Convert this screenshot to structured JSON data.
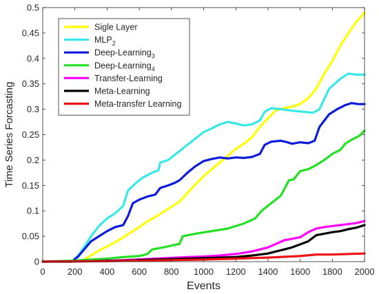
{
  "chart_data": {
    "type": "line",
    "title": "",
    "xlabel": "Events",
    "ylabel": "Time Series Forcasting",
    "xlim": [
      0,
      2000
    ],
    "ylim": [
      0,
      0.5
    ],
    "x_ticks": [
      0,
      200,
      400,
      600,
      800,
      1000,
      1200,
      1400,
      1600,
      1800,
      2000
    ],
    "x_tick_labels": [
      "0",
      "200",
      "400",
      "600",
      "800",
      "1000",
      "1200",
      "1400",
      "1600",
      "1800",
      "2000"
    ],
    "y_ticks": [
      0,
      0.05,
      0.1,
      0.15,
      0.2,
      0.25,
      0.3,
      0.35,
      0.4,
      0.45,
      0.5
    ],
    "y_tick_labels": [
      "0",
      "0.05",
      "0.1",
      "0.15",
      "0.2",
      "0.25",
      "0.3",
      "0.35",
      "0.4",
      "0.45",
      "0.5"
    ],
    "grid": false,
    "legend_position": "top-left",
    "series": [
      {
        "name": "Sigle Layer",
        "legend_main": "Sigle Layer",
        "legend_sub": "",
        "color": "#ffff00",
        "points": [
          [
            0,
            0
          ],
          [
            200,
            0
          ],
          [
            250,
            0.003
          ],
          [
            300,
            0.012
          ],
          [
            350,
            0.022
          ],
          [
            400,
            0.03
          ],
          [
            450,
            0.038
          ],
          [
            500,
            0.048
          ],
          [
            550,
            0.058
          ],
          [
            600,
            0.068
          ],
          [
            650,
            0.079
          ],
          [
            700,
            0.088
          ],
          [
            750,
            0.098
          ],
          [
            800,
            0.108
          ],
          [
            850,
            0.118
          ],
          [
            900,
            0.135
          ],
          [
            950,
            0.152
          ],
          [
            1000,
            0.168
          ],
          [
            1050,
            0.182
          ],
          [
            1100,
            0.195
          ],
          [
            1150,
            0.208
          ],
          [
            1200,
            0.222
          ],
          [
            1250,
            0.232
          ],
          [
            1300,
            0.245
          ],
          [
            1350,
            0.265
          ],
          [
            1400,
            0.282
          ],
          [
            1450,
            0.298
          ],
          [
            1500,
            0.302
          ],
          [
            1550,
            0.305
          ],
          [
            1600,
            0.31
          ],
          [
            1650,
            0.322
          ],
          [
            1700,
            0.34
          ],
          [
            1750,
            0.37
          ],
          [
            1800,
            0.395
          ],
          [
            1850,
            0.425
          ],
          [
            1900,
            0.45
          ],
          [
            1950,
            0.472
          ],
          [
            2000,
            0.49
          ]
        ]
      },
      {
        "name": "MLP2",
        "legend_main": "MLP",
        "legend_sub": "2",
        "color": "#38e8e8",
        "points": [
          [
            0,
            0
          ],
          [
            180,
            0
          ],
          [
            220,
            0.012
          ],
          [
            260,
            0.03
          ],
          [
            300,
            0.05
          ],
          [
            350,
            0.07
          ],
          [
            400,
            0.085
          ],
          [
            450,
            0.095
          ],
          [
            500,
            0.11
          ],
          [
            530,
            0.14
          ],
          [
            580,
            0.155
          ],
          [
            620,
            0.165
          ],
          [
            680,
            0.175
          ],
          [
            720,
            0.18
          ],
          [
            730,
            0.195
          ],
          [
            780,
            0.2
          ],
          [
            820,
            0.21
          ],
          [
            880,
            0.225
          ],
          [
            940,
            0.24
          ],
          [
            1000,
            0.255
          ],
          [
            1050,
            0.262
          ],
          [
            1100,
            0.27
          ],
          [
            1150,
            0.275
          ],
          [
            1200,
            0.272
          ],
          [
            1250,
            0.268
          ],
          [
            1300,
            0.27
          ],
          [
            1350,
            0.278
          ],
          [
            1380,
            0.295
          ],
          [
            1420,
            0.302
          ],
          [
            1480,
            0.3
          ],
          [
            1550,
            0.297
          ],
          [
            1620,
            0.295
          ],
          [
            1680,
            0.293
          ],
          [
            1720,
            0.3
          ],
          [
            1780,
            0.34
          ],
          [
            1850,
            0.36
          ],
          [
            1900,
            0.37
          ],
          [
            1950,
            0.368
          ],
          [
            2000,
            0.368
          ]
        ]
      },
      {
        "name": "Deep-Learning3",
        "legend_main": "Deep-Learning",
        "legend_sub": "3",
        "color": "#0a1adc",
        "points": [
          [
            0,
            0
          ],
          [
            180,
            0
          ],
          [
            220,
            0.01
          ],
          [
            260,
            0.025
          ],
          [
            300,
            0.04
          ],
          [
            350,
            0.05
          ],
          [
            400,
            0.06
          ],
          [
            450,
            0.068
          ],
          [
            500,
            0.072
          ],
          [
            530,
            0.09
          ],
          [
            560,
            0.115
          ],
          [
            600,
            0.122
          ],
          [
            650,
            0.128
          ],
          [
            700,
            0.132
          ],
          [
            730,
            0.145
          ],
          [
            780,
            0.15
          ],
          [
            820,
            0.155
          ],
          [
            850,
            0.16
          ],
          [
            900,
            0.175
          ],
          [
            950,
            0.188
          ],
          [
            1000,
            0.198
          ],
          [
            1050,
            0.202
          ],
          [
            1100,
            0.205
          ],
          [
            1150,
            0.203
          ],
          [
            1200,
            0.205
          ],
          [
            1250,
            0.204
          ],
          [
            1300,
            0.206
          ],
          [
            1350,
            0.212
          ],
          [
            1380,
            0.23
          ],
          [
            1420,
            0.236
          ],
          [
            1480,
            0.238
          ],
          [
            1520,
            0.235
          ],
          [
            1550,
            0.232
          ],
          [
            1600,
            0.235
          ],
          [
            1650,
            0.233
          ],
          [
            1690,
            0.238
          ],
          [
            1720,
            0.265
          ],
          [
            1780,
            0.29
          ],
          [
            1830,
            0.3
          ],
          [
            1880,
            0.308
          ],
          [
            1920,
            0.312
          ],
          [
            1960,
            0.31
          ],
          [
            2000,
            0.31
          ]
        ]
      },
      {
        "name": "Deep-Learning4",
        "legend_main": "Deep-Learning",
        "legend_sub": "4",
        "color": "#22e022",
        "points": [
          [
            0,
            0
          ],
          [
            200,
            0.002
          ],
          [
            300,
            0.004
          ],
          [
            400,
            0.006
          ],
          [
            500,
            0.009
          ],
          [
            600,
            0.011
          ],
          [
            650,
            0.015
          ],
          [
            680,
            0.024
          ],
          [
            750,
            0.028
          ],
          [
            850,
            0.035
          ],
          [
            870,
            0.05
          ],
          [
            950,
            0.055
          ],
          [
            1050,
            0.06
          ],
          [
            1150,
            0.065
          ],
          [
            1250,
            0.075
          ],
          [
            1320,
            0.085
          ],
          [
            1360,
            0.1
          ],
          [
            1420,
            0.115
          ],
          [
            1480,
            0.13
          ],
          [
            1530,
            0.16
          ],
          [
            1560,
            0.162
          ],
          [
            1600,
            0.178
          ],
          [
            1650,
            0.182
          ],
          [
            1700,
            0.19
          ],
          [
            1750,
            0.2
          ],
          [
            1800,
            0.212
          ],
          [
            1850,
            0.22
          ],
          [
            1880,
            0.232
          ],
          [
            1920,
            0.24
          ],
          [
            1970,
            0.248
          ],
          [
            1990,
            0.255
          ],
          [
            2000,
            0.258
          ]
        ]
      },
      {
        "name": "Transfer-Learning",
        "legend_main": "Transfer-Learning",
        "legend_sub": "",
        "color": "#ff00ff",
        "points": [
          [
            0,
            0
          ],
          [
            300,
            0.001
          ],
          [
            500,
            0.003
          ],
          [
            700,
            0.006
          ],
          [
            900,
            0.009
          ],
          [
            1000,
            0.01
          ],
          [
            1100,
            0.012
          ],
          [
            1200,
            0.015
          ],
          [
            1300,
            0.02
          ],
          [
            1400,
            0.028
          ],
          [
            1450,
            0.035
          ],
          [
            1500,
            0.042
          ],
          [
            1550,
            0.045
          ],
          [
            1600,
            0.048
          ],
          [
            1650,
            0.058
          ],
          [
            1700,
            0.065
          ],
          [
            1750,
            0.068
          ],
          [
            1800,
            0.07
          ],
          [
            1850,
            0.072
          ],
          [
            1900,
            0.074
          ],
          [
            1950,
            0.076
          ],
          [
            2000,
            0.08
          ]
        ]
      },
      {
        "name": "Meta-Learning",
        "legend_main": "Meta-Learning",
        "legend_sub": "",
        "color": "#000000",
        "points": [
          [
            0,
            0
          ],
          [
            300,
            0.001
          ],
          [
            500,
            0.002
          ],
          [
            700,
            0.004
          ],
          [
            900,
            0.006
          ],
          [
            1100,
            0.008
          ],
          [
            1200,
            0.009
          ],
          [
            1300,
            0.012
          ],
          [
            1400,
            0.016
          ],
          [
            1450,
            0.02
          ],
          [
            1500,
            0.024
          ],
          [
            1550,
            0.028
          ],
          [
            1600,
            0.034
          ],
          [
            1650,
            0.04
          ],
          [
            1700,
            0.052
          ],
          [
            1750,
            0.055
          ],
          [
            1800,
            0.058
          ],
          [
            1850,
            0.06
          ],
          [
            1900,
            0.064
          ],
          [
            1950,
            0.067
          ],
          [
            2000,
            0.072
          ]
        ]
      },
      {
        "name": "Meta-transfer Learning",
        "legend_main": "Meta-transfer Learning",
        "legend_sub": "",
        "color": "#ee1111",
        "points": [
          [
            0,
            0
          ],
          [
            400,
            0.001
          ],
          [
            800,
            0.003
          ],
          [
            1000,
            0.004
          ],
          [
            1200,
            0.006
          ],
          [
            1400,
            0.008
          ],
          [
            1600,
            0.011
          ],
          [
            1700,
            0.014
          ],
          [
            1800,
            0.014
          ],
          [
            1900,
            0.015
          ],
          [
            2000,
            0.016
          ]
        ]
      }
    ]
  }
}
